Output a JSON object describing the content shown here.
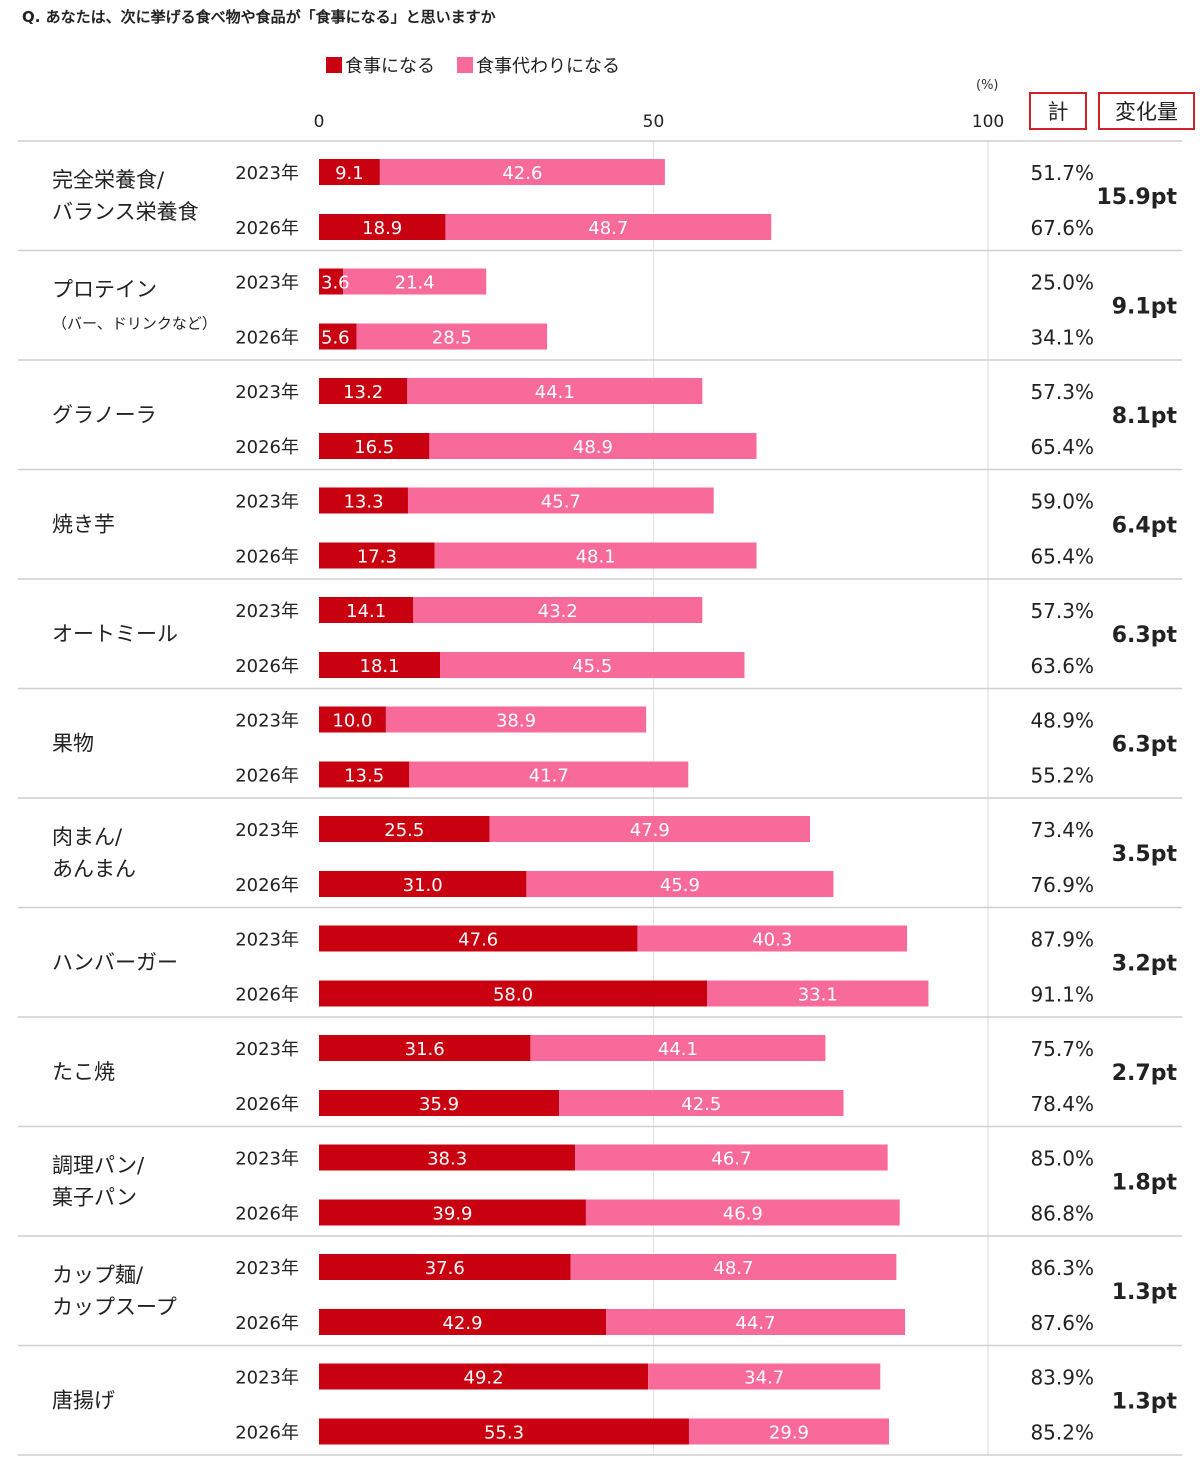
{
  "question": "Q. あなたは、次に挙げる食べ物や食品が「食事になる」と思いますか",
  "unit_label": "(%)",
  "header": {
    "total": "計",
    "change": "変化量"
  },
  "colors": {
    "meal": "#c8000f",
    "replacement": "#f76a9a"
  },
  "chart_data": {
    "type": "bar",
    "orientation": "horizontal",
    "stacked": true,
    "xlim": [
      0,
      100
    ],
    "xticks": [
      "0",
      "50",
      "100"
    ],
    "series_names": [
      "食事になる",
      "食事代わりになる"
    ],
    "groups": [
      {
        "label": [
          "完全栄養食/",
          "バランス栄養食"
        ],
        "change": "15.9pt",
        "rows": [
          {
            "year": "2023年",
            "meal": 9.1,
            "replacement": 42.6,
            "total": "51.7%"
          },
          {
            "year": "2026年",
            "meal": 18.9,
            "replacement": 48.7,
            "total": "67.6%"
          }
        ]
      },
      {
        "label": [
          "プロテイン",
          "（バー、ドリンクなど）"
        ],
        "change": "9.1pt",
        "rows": [
          {
            "year": "2023年",
            "meal": 3.6,
            "replacement": 21.4,
            "total": "25.0%"
          },
          {
            "year": "2026年",
            "meal": 5.6,
            "replacement": 28.5,
            "total": "34.1%"
          }
        ]
      },
      {
        "label": [
          "グラノーラ"
        ],
        "change": "8.1pt",
        "rows": [
          {
            "year": "2023年",
            "meal": 13.2,
            "replacement": 44.1,
            "total": "57.3%"
          },
          {
            "year": "2026年",
            "meal": 16.5,
            "replacement": 48.9,
            "total": "65.4%"
          }
        ]
      },
      {
        "label": [
          "焼き芋"
        ],
        "change": "6.4pt",
        "rows": [
          {
            "year": "2023年",
            "meal": 13.3,
            "replacement": 45.7,
            "total": "59.0%"
          },
          {
            "year": "2026年",
            "meal": 17.3,
            "replacement": 48.1,
            "total": "65.4%"
          }
        ]
      },
      {
        "label": [
          "オートミール"
        ],
        "change": "6.3pt",
        "rows": [
          {
            "year": "2023年",
            "meal": 14.1,
            "replacement": 43.2,
            "total": "57.3%"
          },
          {
            "year": "2026年",
            "meal": 18.1,
            "replacement": 45.5,
            "total": "63.6%"
          }
        ]
      },
      {
        "label": [
          "果物"
        ],
        "change": "6.3pt",
        "rows": [
          {
            "year": "2023年",
            "meal": 10.0,
            "replacement": 38.9,
            "total": "48.9%"
          },
          {
            "year": "2026年",
            "meal": 13.5,
            "replacement": 41.7,
            "total": "55.2%"
          }
        ]
      },
      {
        "label": [
          "肉まん/",
          "あんまん"
        ],
        "change": "3.5pt",
        "rows": [
          {
            "year": "2023年",
            "meal": 25.5,
            "replacement": 47.9,
            "total": "73.4%"
          },
          {
            "year": "2026年",
            "meal": 31.0,
            "replacement": 45.9,
            "total": "76.9%"
          }
        ]
      },
      {
        "label": [
          "ハンバーガー"
        ],
        "change": "3.2pt",
        "rows": [
          {
            "year": "2023年",
            "meal": 47.6,
            "replacement": 40.3,
            "total": "87.9%"
          },
          {
            "year": "2026年",
            "meal": 58.0,
            "replacement": 33.1,
            "total": "91.1%"
          }
        ]
      },
      {
        "label": [
          "たこ焼"
        ],
        "change": "2.7pt",
        "rows": [
          {
            "year": "2023年",
            "meal": 31.6,
            "replacement": 44.1,
            "total": "75.7%"
          },
          {
            "year": "2026年",
            "meal": 35.9,
            "replacement": 42.5,
            "total": "78.4%"
          }
        ]
      },
      {
        "label": [
          "調理パン/",
          "菓子パン"
        ],
        "change": "1.8pt",
        "rows": [
          {
            "year": "2023年",
            "meal": 38.3,
            "replacement": 46.7,
            "total": "85.0%"
          },
          {
            "year": "2026年",
            "meal": 39.9,
            "replacement": 46.9,
            "total": "86.8%"
          }
        ]
      },
      {
        "label": [
          "カップ麺/",
          "カップスープ"
        ],
        "change": "1.3pt",
        "rows": [
          {
            "year": "2023年",
            "meal": 37.6,
            "replacement": 48.7,
            "total": "86.3%"
          },
          {
            "year": "2026年",
            "meal": 42.9,
            "replacement": 44.7,
            "total": "87.6%"
          }
        ]
      },
      {
        "label": [
          "唐揚げ"
        ],
        "change": "1.3pt",
        "rows": [
          {
            "year": "2023年",
            "meal": 49.2,
            "replacement": 34.7,
            "total": "83.9%"
          },
          {
            "year": "2026年",
            "meal": 55.3,
            "replacement": 29.9,
            "total": "85.2%"
          }
        ]
      }
    ]
  }
}
